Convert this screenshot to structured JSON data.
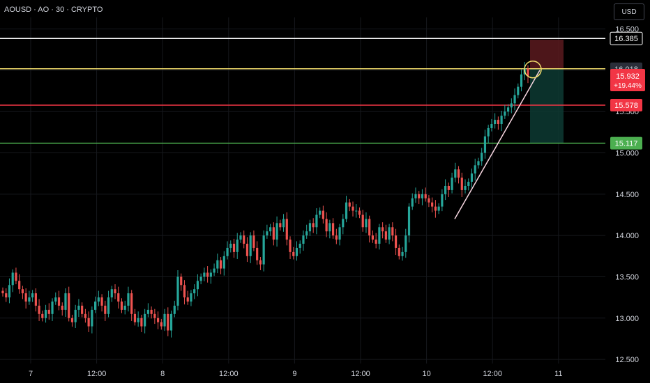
{
  "header": {
    "symbol": "AOUSD · AO · 30 · CRYPTO",
    "currency_button": "USD"
  },
  "colors": {
    "background": "#000000",
    "grid": "#16181d",
    "up": "#26a69a",
    "down": "#ef5350",
    "white_line": "#ffffff",
    "yellow_line": "#f5e06e",
    "red_line": "#f23645",
    "green_line": "#4caf50",
    "trend_line": "#f8d7e1",
    "price_badge": "#f23645",
    "stop_zone": "#5a1a1f",
    "target_zone": "#0d3a32",
    "text": "#d1d4dc"
  },
  "chart_data": {
    "type": "candlestick",
    "ylim": [
      12.45,
      16.64
    ],
    "y_ticks": [
      12.5,
      13.0,
      13.5,
      14.0,
      14.5,
      15.0,
      15.5,
      16.0,
      16.5
    ],
    "y_tick_labels": [
      "12.500",
      "13.000",
      "13.500",
      "14.000",
      "14.500",
      "15.000",
      "15.500",
      "16.000",
      "16.500"
    ],
    "x_ticks": [
      "7",
      "12:00",
      "8",
      "12:00",
      "9",
      "12:00",
      "10",
      "12:00",
      "11"
    ],
    "horizontal_lines": [
      {
        "name": "white-line",
        "value": 16.385,
        "label": "16.385",
        "color": "#ffffff"
      },
      {
        "name": "yellow-line",
        "value": 16.018,
        "label": "16.018",
        "color": "#f5e06e"
      },
      {
        "name": "red-line",
        "value": 15.578,
        "label": "15.578",
        "color": "#f23645"
      },
      {
        "name": "green-line",
        "value": 15.117,
        "label": "15.117",
        "color": "#4caf50"
      }
    ],
    "last_price": {
      "value": 15.932,
      "label": "15.932",
      "change": "+19.44%"
    },
    "stop_zone": {
      "top": 16.37,
      "bottom": 16.02
    },
    "target_zone": {
      "top": 16.02,
      "bottom": 15.12
    },
    "trend_line": {
      "from": 14.2,
      "to": 16.0
    },
    "marker_circle": {
      "value": 16.01
    },
    "candles_close": [
      13.3,
      13.25,
      13.4,
      13.55,
      13.45,
      13.35,
      13.3,
      13.2,
      13.25,
      13.3,
      13.15,
      13.05,
      13.0,
      13.1,
      13.05,
      13.2,
      13.25,
      13.15,
      13.1,
      13.3,
      13.0,
      12.95,
      13.1,
      13.15,
      13.05,
      13.0,
      12.9,
      13.1,
      13.2,
      13.25,
      13.15,
      13.05,
      13.25,
      13.35,
      13.3,
      13.2,
      13.1,
      13.15,
      13.3,
      13.05,
      12.95,
      13.0,
      12.9,
      13.05,
      13.1,
      13.05,
      13.0,
      12.95,
      12.9,
      13.05,
      12.85,
      13.05,
      13.15,
      13.5,
      13.4,
      13.25,
      13.2,
      13.3,
      13.35,
      13.45,
      13.5,
      13.55,
      13.5,
      13.55,
      13.6,
      13.7,
      13.6,
      13.75,
      13.85,
      13.9,
      13.8,
      13.95,
      14.0,
      13.9,
      13.75,
      14.0,
      13.85,
      13.7,
      13.65,
      14.0,
      14.05,
      14.1,
      13.95,
      14.15,
      14.1,
      14.2,
      13.95,
      13.8,
      13.75,
      13.85,
      13.9,
      14.0,
      14.05,
      14.15,
      14.1,
      14.25,
      14.3,
      14.2,
      14.05,
      14.15,
      14.0,
      13.95,
      14.1,
      14.2,
      14.4,
      14.35,
      14.3,
      14.3,
      14.25,
      14.1,
      14.2,
      14.0,
      13.95,
      13.9,
      14.1,
      14.05,
      13.95,
      14.1,
      14.0,
      13.85,
      13.75,
      13.8,
      14.0,
      14.35,
      14.45,
      14.5,
      14.45,
      14.5,
      14.45,
      14.4,
      14.35,
      14.3,
      14.35,
      14.5,
      14.6,
      14.55,
      14.7,
      14.8,
      14.7,
      14.55,
      14.6,
      14.65,
      14.75,
      14.85,
      14.9,
      15.0,
      15.2,
      15.3,
      15.35,
      15.4,
      15.35,
      15.45,
      15.5,
      15.55,
      15.6,
      15.7,
      15.8,
      15.95,
      16.02,
      15.93
    ]
  }
}
